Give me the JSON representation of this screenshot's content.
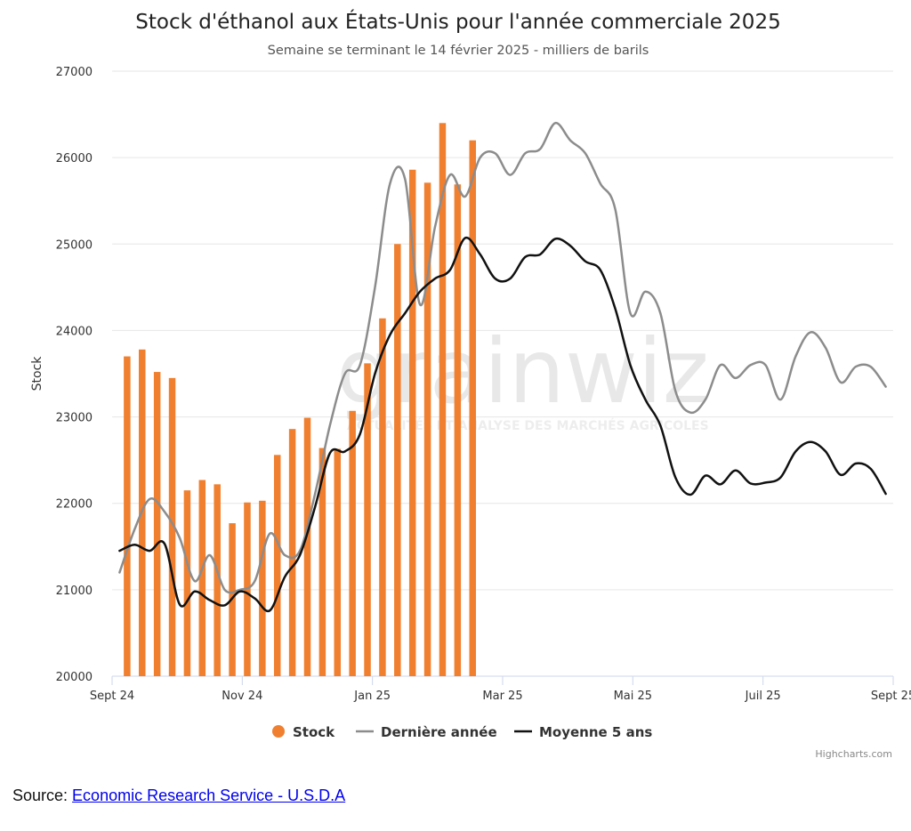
{
  "chart_data": {
    "type": "bar",
    "title": "Stock d'éthanol aux États-Unis pour l'année commerciale 2025",
    "subtitle": "Semaine se terminant le 14 février 2025 - milliers de barils",
    "ylabel": "Stock",
    "ylim": [
      20000,
      27000
    ],
    "y_ticks": [
      20000,
      21000,
      22000,
      23000,
      24000,
      25000,
      26000,
      27000
    ],
    "x_tick_labels": [
      "Sept 24",
      "Nov 24",
      "Jan 25",
      "Mar 25",
      "Mai 25",
      "Juil 25",
      "Sept 25"
    ],
    "x_range_weeks": [
      0,
      52
    ],
    "grid": true,
    "legend_position": "bottom-center",
    "series": [
      {
        "name": "Stock",
        "type": "bar",
        "color": "#f07f2f",
        "x": [
          1,
          2,
          3,
          4,
          5,
          6,
          7,
          8,
          9,
          10,
          11,
          12,
          13,
          14,
          15,
          16,
          17,
          18,
          19,
          20,
          21,
          22,
          23,
          24
        ],
        "values": [
          23700,
          23780,
          23520,
          23450,
          22150,
          22270,
          22220,
          21770,
          22010,
          22030,
          22560,
          22860,
          22990,
          22640,
          22630,
          23070,
          23620,
          24140,
          25000,
          25860,
          25710,
          26400,
          25690,
          26200
        ]
      },
      {
        "name": "Dernière année",
        "type": "line",
        "color": "#8c8c8c",
        "x": [
          0.5,
          1.5,
          2.5,
          3.5,
          4.5,
          5.5,
          6.5,
          7.5,
          8.5,
          9.5,
          10.5,
          11.5,
          12.5,
          13.5,
          14.5,
          15.5,
          16.5,
          17.5,
          18.5,
          19.5,
          20.5,
          21.5,
          22.5,
          23.5,
          24.5,
          25.5,
          26.5,
          27.5,
          28.5,
          29.5,
          30.5,
          31.5,
          32.5,
          33.5,
          34.5,
          35.5,
          36.5,
          37.5,
          38.5,
          39.5,
          40.5,
          41.5,
          42.5,
          43.5,
          44.5,
          45.5,
          46.5,
          47.5,
          48.5,
          49.5,
          50.5,
          51.5
        ],
        "values": [
          21200,
          21700,
          22050,
          21900,
          21600,
          21100,
          21400,
          21000,
          21000,
          21100,
          21650,
          21400,
          21450,
          22100,
          22900,
          23500,
          23600,
          24500,
          25700,
          25750,
          24300,
          25200,
          25800,
          25550,
          26000,
          26050,
          25800,
          26050,
          26100,
          26400,
          26200,
          26050,
          25700,
          25400,
          24200,
          24450,
          24200,
          23300,
          23050,
          23200,
          23600,
          23450,
          23600,
          23600,
          23200,
          23700,
          23980,
          23800,
          23400,
          23580,
          23580,
          23350
        ]
      },
      {
        "name": "Moyenne 5 ans",
        "type": "line",
        "color": "#111111",
        "x": [
          0.5,
          1.5,
          2.5,
          3.5,
          4.5,
          5.5,
          6.5,
          7.5,
          8.5,
          9.5,
          10.5,
          11.5,
          12.5,
          13.5,
          14.5,
          15.5,
          16.5,
          17.5,
          18.5,
          19.5,
          20.5,
          21.5,
          22.5,
          23.5,
          24.5,
          25.5,
          26.5,
          27.5,
          28.5,
          29.5,
          30.5,
          31.5,
          32.5,
          33.5,
          34.5,
          35.5,
          36.5,
          37.5,
          38.5,
          39.5,
          40.5,
          41.5,
          42.5,
          43.5,
          44.5,
          45.5,
          46.5,
          47.5,
          48.5,
          49.5,
          50.5,
          51.5
        ],
        "values": [
          21450,
          21520,
          21450,
          21530,
          20830,
          20980,
          20880,
          20820,
          20980,
          20900,
          20760,
          21150,
          21400,
          21950,
          22580,
          22600,
          22800,
          23500,
          23950,
          24200,
          24450,
          24600,
          24700,
          25070,
          24880,
          24600,
          24600,
          24850,
          24880,
          25060,
          24980,
          24800,
          24700,
          24250,
          23600,
          23200,
          22900,
          22300,
          22100,
          22320,
          22220,
          22380,
          22230,
          22240,
          22300,
          22600,
          22710,
          22600,
          22330,
          22460,
          22400,
          22110
        ]
      }
    ]
  },
  "legend": {
    "items": [
      {
        "label": "Stock",
        "color": "#f07f2f"
      },
      {
        "label": "Dernière année",
        "color": "#8c8c8c"
      },
      {
        "label": "Moyenne 5 ans",
        "color": "#111111"
      }
    ]
  },
  "watermark": {
    "logo_text": "grainwiz",
    "tagline": "ACTUALITÉS ET ANALYSE DES MARCHÉS AGRICOLES"
  },
  "credits": "Highcharts.com",
  "source": {
    "prefix": "Source: ",
    "link_text": "Economic Research Service - U.S.D.A"
  }
}
